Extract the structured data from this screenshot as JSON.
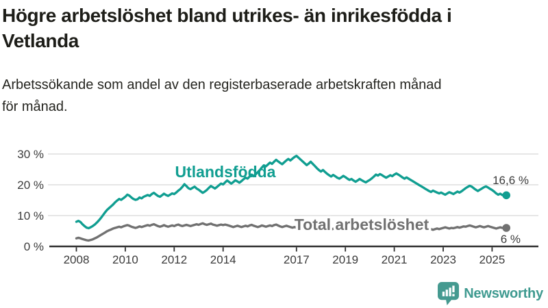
{
  "header": {
    "title_line1": "Högre arbetslöshet bland utrikes- än inrikesfödda i",
    "title_line2": "Vetlanda",
    "subtitle_line1": "Arbetssökande som andel av den registerbaserade arbetskraften månad",
    "subtitle_line2": "för månad."
  },
  "footer": {
    "brand": "Newsworthy"
  },
  "colors": {
    "accent_teal": "#109e91",
    "series_gray": "#717171",
    "axis": "#2e2e2e",
    "grid": "#d8d8d8",
    "tick_text": "#3a3a3a",
    "brand_teal": "#459a90"
  },
  "chart_data": {
    "type": "line",
    "title": "Högre arbetslöshet bland utrikes- än inrikesfödda i Vetlanda",
    "subtitle": "Arbetssökande som andel av den registerbaserade arbetskraften månad för månad.",
    "xlabel": "",
    "ylabel": "",
    "ylim": [
      0,
      32
    ],
    "x_start_year": 2008,
    "x_step": "monthly",
    "grid": "horizontal",
    "legend_position": "inline-labels",
    "y_ticks": [
      {
        "label": "30 %",
        "value": 30
      },
      {
        "label": "20 %",
        "value": 20
      },
      {
        "label": "10 %",
        "value": 10
      },
      {
        "label": "0 %",
        "value": 0
      }
    ],
    "x_ticks": [
      {
        "label": "2008",
        "year": 2008
      },
      {
        "label": "2010",
        "year": 2010
      },
      {
        "label": "2012",
        "year": 2012
      },
      {
        "label": "2014",
        "year": 2014
      },
      {
        "label": "2017",
        "year": 2017
      },
      {
        "label": "2019",
        "year": 2019
      },
      {
        "label": "2021",
        "year": 2021
      },
      {
        "label": "2023",
        "year": 2023
      },
      {
        "label": "2025",
        "year": 2025
      }
    ],
    "series": [
      {
        "name": "Utlandsfödda",
        "color": "#109e91",
        "end_label": "16,6 %",
        "end_value": 16.6,
        "values": [
          8.0,
          8.3,
          7.9,
          7.2,
          6.6,
          6.1,
          5.9,
          6.2,
          6.6,
          7.1,
          7.7,
          8.4,
          9.2,
          10.1,
          11.0,
          11.8,
          12.4,
          13.0,
          13.6,
          14.3,
          14.9,
          15.4,
          15.1,
          15.6,
          16.1,
          16.8,
          16.5,
          15.9,
          15.4,
          15.1,
          15.3,
          15.9,
          15.6,
          16.1,
          16.4,
          16.7,
          16.4,
          17.0,
          17.4,
          16.9,
          16.4,
          16.1,
          16.6,
          17.1,
          16.7,
          16.4,
          16.8,
          17.2,
          17.0,
          17.5,
          18.1,
          18.6,
          19.3,
          20.2,
          19.6,
          18.9,
          18.6,
          19.0,
          19.4,
          18.8,
          18.4,
          17.9,
          17.4,
          17.8,
          18.3,
          19.0,
          19.6,
          19.2,
          18.8,
          19.3,
          19.9,
          20.4,
          20.1,
          20.8,
          21.4,
          20.9,
          20.4,
          20.9,
          21.5,
          21.1,
          20.7,
          21.2,
          21.8,
          22.3,
          22.0,
          22.7,
          23.3,
          22.8,
          23.4,
          24.1,
          24.8,
          25.6,
          26.3,
          26.0,
          26.6,
          27.2,
          26.8,
          27.5,
          28.1,
          27.6,
          27.1,
          26.7,
          27.3,
          27.9,
          28.4,
          27.9,
          28.5,
          29.0,
          29.4,
          28.8,
          28.2,
          27.6,
          27.0,
          26.4,
          26.9,
          27.5,
          26.8,
          26.1,
          25.4,
          24.8,
          24.3,
          24.8,
          24.2,
          23.6,
          23.1,
          22.7,
          23.2,
          22.8,
          22.3,
          22.0,
          22.4,
          22.9,
          22.5,
          22.0,
          21.6,
          21.9,
          21.4,
          21.0,
          21.4,
          21.9,
          21.5,
          21.1,
          20.8,
          21.2,
          21.6,
          22.1,
          22.7,
          23.3,
          23.0,
          23.5,
          23.1,
          22.7,
          22.3,
          22.7,
          23.1,
          22.8,
          23.3,
          23.7,
          23.3,
          22.9,
          22.4,
          22.0,
          22.4,
          22.0,
          21.6,
          21.2,
          20.8,
          20.4,
          20.0,
          19.6,
          19.2,
          18.8,
          18.4,
          18.0,
          17.7,
          18.1,
          17.8,
          17.5,
          17.2,
          17.5,
          17.1,
          16.8,
          17.2,
          17.6,
          17.3,
          17.0,
          17.4,
          17.8,
          17.5,
          17.9,
          18.4,
          18.9,
          19.3,
          19.7,
          19.4,
          18.9,
          18.4,
          18.0,
          18.4,
          18.8,
          19.2,
          19.5,
          19.1,
          18.7,
          18.3,
          17.8,
          17.2,
          16.8,
          17.1,
          16.7,
          16.4,
          16.6
        ]
      },
      {
        "name": "Total arbetslöshet",
        "color": "#717171",
        "end_label": "6 %",
        "end_value": 6.0,
        "values": [
          2.6,
          2.8,
          2.6,
          2.4,
          2.2,
          2.0,
          1.9,
          2.1,
          2.3,
          2.6,
          2.9,
          3.3,
          3.7,
          4.1,
          4.5,
          4.9,
          5.2,
          5.5,
          5.8,
          6.0,
          6.2,
          6.4,
          6.2,
          6.5,
          6.7,
          6.9,
          6.7,
          6.4,
          6.2,
          6.0,
          6.2,
          6.5,
          6.3,
          6.5,
          6.7,
          6.9,
          6.7,
          7.0,
          7.2,
          6.9,
          6.6,
          6.4,
          6.6,
          6.9,
          6.6,
          6.4,
          6.6,
          6.8,
          6.6,
          6.9,
          7.1,
          6.8,
          6.6,
          6.8,
          7.0,
          6.8,
          6.6,
          6.8,
          7.0,
          7.2,
          7.0,
          7.3,
          7.5,
          7.2,
          7.0,
          7.2,
          7.4,
          7.1,
          6.9,
          6.7,
          6.9,
          7.1,
          6.9,
          7.1,
          6.9,
          6.7,
          6.5,
          6.3,
          6.5,
          6.7,
          6.5,
          6.3,
          6.5,
          6.7,
          6.5,
          6.8,
          7.0,
          6.7,
          6.5,
          6.3,
          6.5,
          6.8,
          6.6,
          6.4,
          6.6,
          6.8,
          6.6,
          6.9,
          7.1,
          6.8,
          6.5,
          6.3,
          6.5,
          6.7,
          6.5,
          6.3,
          6.1,
          6.3,
          6.1,
          6.4,
          6.6,
          6.3,
          6.1,
          5.9,
          6.1,
          6.3,
          6.1,
          5.9,
          5.7,
          5.9,
          5.7,
          6.0,
          6.2,
          5.9,
          5.7,
          5.5,
          5.7,
          5.9,
          5.7,
          5.5,
          5.3,
          5.5,
          5.3,
          5.6,
          5.8,
          5.5,
          5.3,
          5.5,
          5.7,
          5.5,
          5.3,
          5.5,
          5.7,
          5.9,
          6.1,
          6.4,
          6.8,
          7.3,
          7.6,
          7.8,
          7.6,
          7.4,
          7.2,
          7.0,
          6.8,
          7.0,
          7.2,
          7.4,
          7.2,
          7.0,
          6.8,
          6.6,
          6.4,
          6.2,
          6.0,
          5.8,
          5.6,
          5.8,
          5.6,
          5.8,
          5.6,
          5.4,
          5.2,
          5.4,
          5.6,
          5.4,
          5.6,
          5.8,
          5.6,
          5.8,
          6.0,
          6.2,
          6.0,
          5.8,
          6.0,
          5.9,
          6.1,
          6.3,
          6.1,
          6.3,
          6.5,
          6.4,
          6.6,
          6.8,
          6.6,
          6.4,
          6.2,
          6.4,
          6.6,
          6.4,
          6.2,
          6.4,
          6.6,
          6.4,
          6.2,
          6.0,
          5.8,
          6.0,
          6.2,
          6.0,
          5.9,
          6.0
        ]
      }
    ]
  }
}
